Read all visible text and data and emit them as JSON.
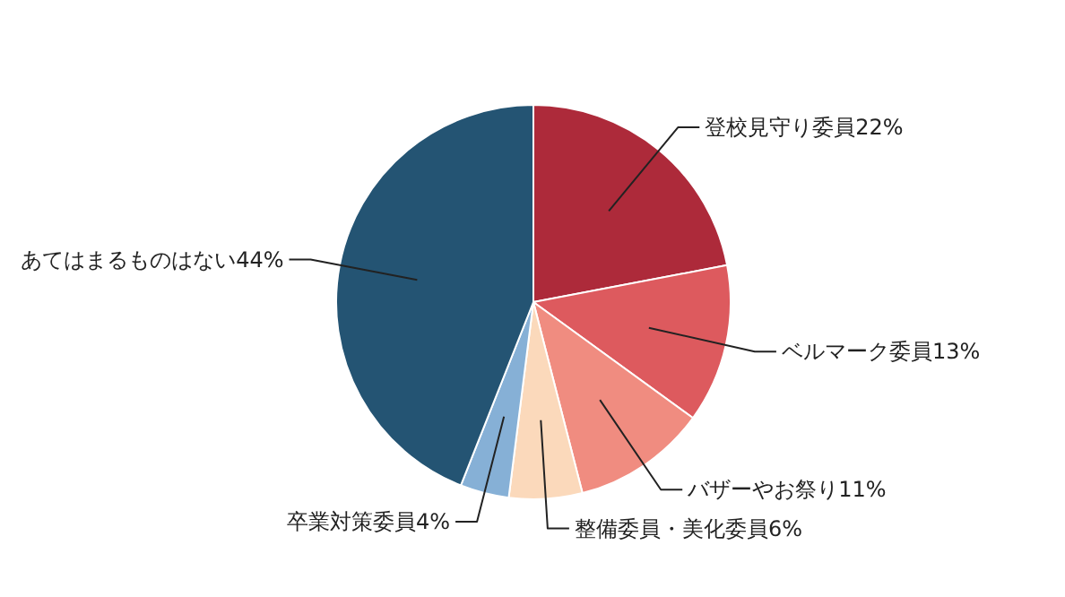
{
  "chart_data": {
    "type": "pie",
    "categories": [
      "登校見守り委員",
      "ベルマーク委員",
      "バザーやお祭り",
      "整備委員・美化委員",
      "卒業対策委員",
      "あてはまるものはない"
    ],
    "values": [
      22,
      13,
      11,
      6,
      4,
      44
    ],
    "value_labels": [
      "22%",
      "13%",
      "11%",
      "6%",
      "4%",
      "44%"
    ],
    "colors": [
      "#ad2a3a",
      "#dd5a5e",
      "#f08c80",
      "#fbd9bb",
      "#86b0d6",
      "#245473"
    ]
  }
}
